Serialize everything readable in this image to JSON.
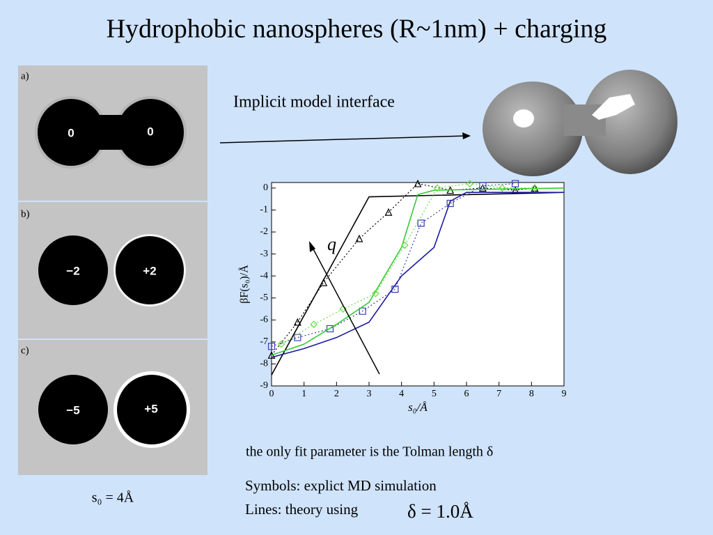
{
  "title": "Hydrophobic nanospheres (R~1nm) + charging",
  "panels": [
    {
      "label": "a)",
      "left": "0",
      "right": "0"
    },
    {
      "label": "b)",
      "left": "−2",
      "right": "+2"
    },
    {
      "label": "c)",
      "left": "−5",
      "right": "+5"
    }
  ],
  "separation": "s₀ = 4Å",
  "interface_label": "Implicit model interface",
  "arrow_label": "q",
  "fit_note": "the only fit parameter is the Tolman length δ",
  "symbols_note": "Symbols: explict MD simulation",
  "lines_note": "Lines: theory using",
  "delta_value": "δ = 1.0Å",
  "chart_data": {
    "type": "line",
    "xlabel": "s₀/Å",
    "ylabel": "βF(s₀)/Å",
    "xlim": [
      0,
      9
    ],
    "ylim": [
      -9,
      0.25
    ],
    "xticks": [
      0,
      1,
      2,
      3,
      4,
      5,
      6,
      7,
      8,
      9
    ],
    "yticks": [
      0,
      -1,
      -2,
      -3,
      -4,
      -5,
      -6,
      -7,
      -8,
      -9
    ],
    "series": [
      {
        "color": "#000000",
        "style": "line",
        "x": [
          0,
          3,
          9
        ],
        "values": [
          -8.5,
          -0.4,
          -0.2
        ]
      },
      {
        "color": "#000000",
        "style": "markers",
        "marker": "triangle",
        "x": [
          0,
          0.8,
          1.6,
          2.7,
          3.6,
          4.5,
          5.5,
          6.5,
          7.5,
          8.1
        ],
        "values": [
          -7.6,
          -6.1,
          -4.3,
          -2.3,
          -1.1,
          0.2,
          -0.1,
          0,
          -0.1,
          0
        ]
      },
      {
        "color": "#1a1aa0",
        "style": "line",
        "x": [
          0,
          1,
          2,
          3,
          4,
          5,
          5.5,
          6,
          9
        ],
        "values": [
          -7.7,
          -7.3,
          -6.8,
          -6.1,
          -4,
          -2.7,
          -0.6,
          -0.2,
          -0.2
        ]
      },
      {
        "color": "#3a3ab0",
        "style": "markers",
        "marker": "square",
        "x": [
          0,
          0.8,
          1.8,
          2.8,
          3.8,
          4.6,
          5.5,
          6.5,
          7.5
        ],
        "values": [
          -7.2,
          -6.8,
          -6.4,
          -5.6,
          -4.6,
          -1.6,
          -0.7,
          0.1,
          0.2
        ]
      },
      {
        "color": "#33cc33",
        "style": "line",
        "x": [
          0,
          1,
          2,
          3,
          4,
          4.5,
          5,
          9
        ],
        "values": [
          -7.6,
          -7.1,
          -6.2,
          -5.2,
          -2.7,
          -0.3,
          -0.1,
          0
        ]
      },
      {
        "color": "#66dd44",
        "style": "markers",
        "marker": "diamond",
        "x": [
          0.3,
          1.3,
          2.2,
          3.2,
          4.1,
          5.1,
          6.1,
          7.1,
          8.1
        ],
        "values": [
          -7.1,
          -6.2,
          -5.5,
          -4.8,
          -2.6,
          0,
          0.2,
          0,
          0
        ]
      }
    ]
  }
}
